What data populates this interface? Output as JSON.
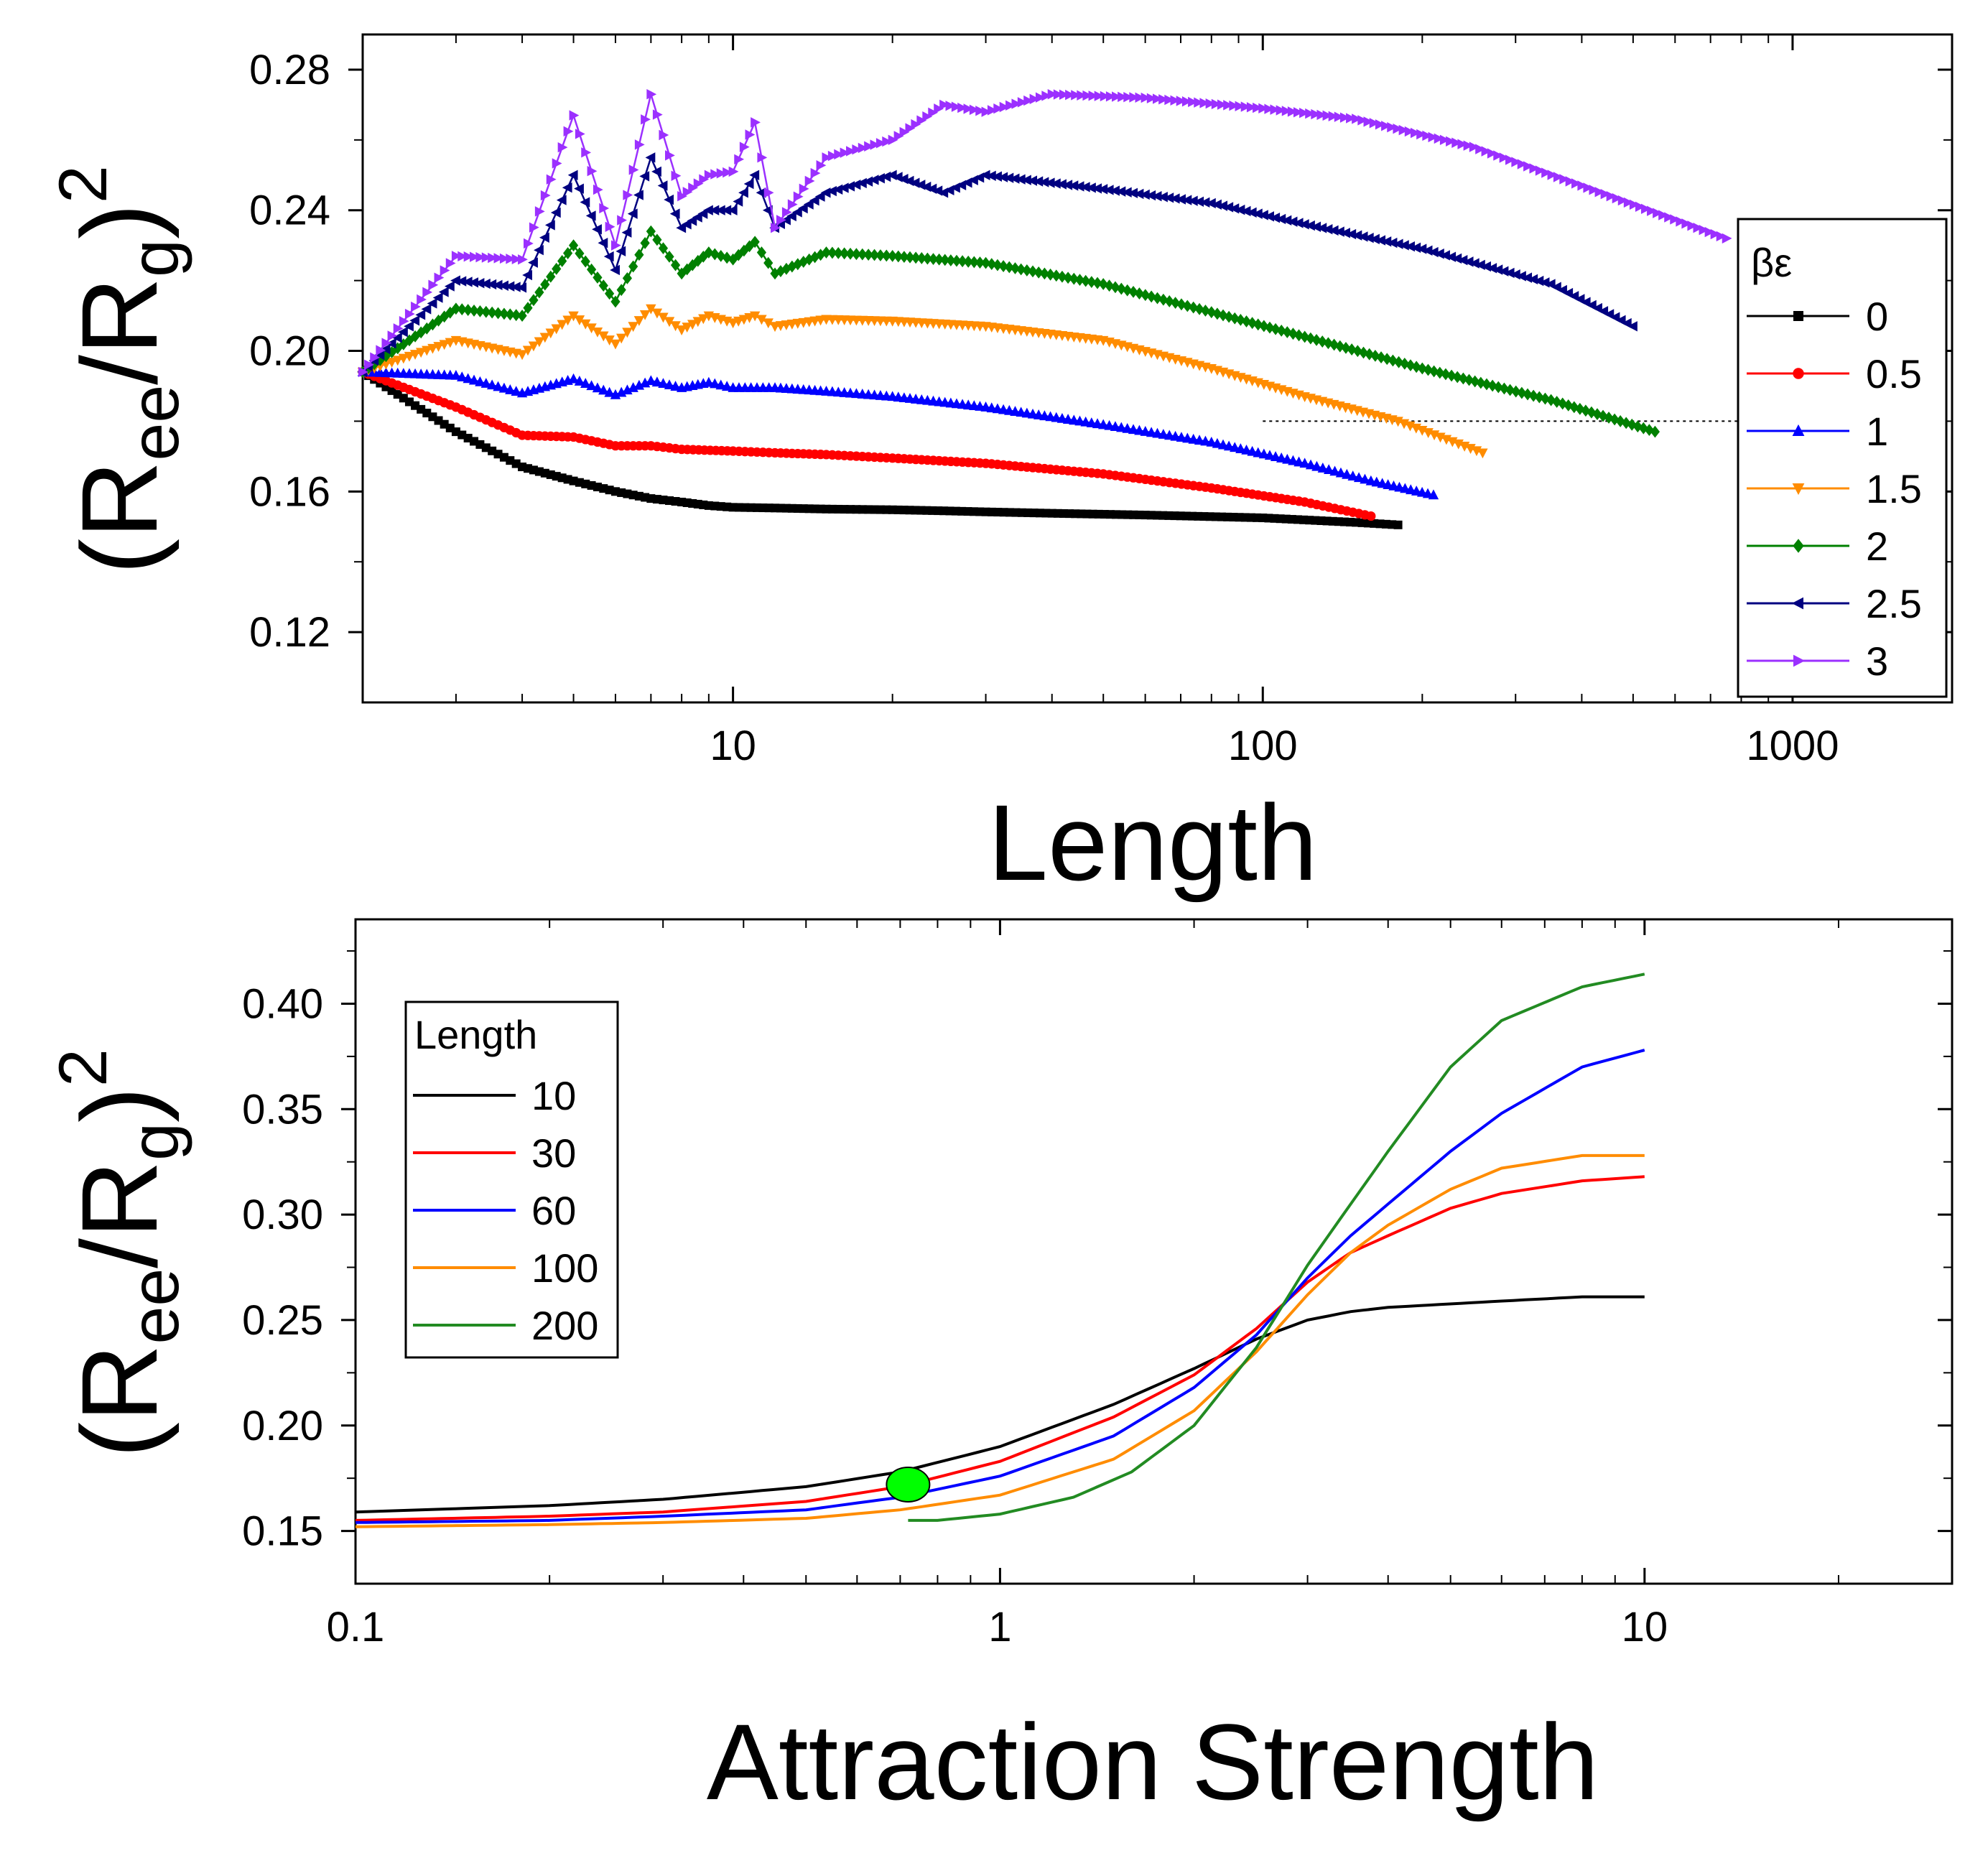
{
  "chart_data": [
    {
      "type": "line",
      "title": "",
      "xlabel": "Length",
      "ylabel": {
        "open": "(R",
        "sub1": "ee",
        "mid": "/R",
        "sub2": "g",
        "close": ")",
        "sup": "2"
      },
      "xscale": "log",
      "xlim": [
        2,
        2000
      ],
      "ylim": [
        0.1,
        0.29
      ],
      "xticks": [
        10,
        100,
        1000
      ],
      "xtick_labels": [
        "10",
        "100",
        "1000"
      ],
      "yticks": [
        0.12,
        0.16,
        0.2,
        0.24,
        0.28
      ],
      "ytick_labels": [
        "0.12",
        "0.16",
        "0.20",
        "0.24",
        "0.28"
      ],
      "reference_line": {
        "y": 0.18,
        "x_from": 100,
        "x_to": 2000,
        "style": "dotted"
      },
      "legend": {
        "title": "βε",
        "placement": "right"
      },
      "series": [
        {
          "name": "0",
          "color": "#000000",
          "marker": "square",
          "x": [
            2,
            3,
            4,
            5,
            6,
            7,
            8,
            9,
            10,
            12,
            15,
            20,
            25,
            30,
            40,
            60,
            100,
            150,
            180
          ],
          "y": [
            0.194,
            0.177,
            0.167,
            0.163,
            0.16,
            0.158,
            0.157,
            0.156,
            0.1555,
            0.1553,
            0.155,
            0.1548,
            0.1545,
            0.1542,
            0.1538,
            0.1533,
            0.1525,
            0.1512,
            0.1505
          ]
        },
        {
          "name": "0.5",
          "color": "#ff0000",
          "marker": "circle",
          "x": [
            2,
            3,
            4,
            5,
            6,
            7,
            8,
            10,
            12,
            15,
            20,
            30,
            50,
            80,
            120,
            160
          ],
          "y": [
            0.194,
            0.184,
            0.176,
            0.1755,
            0.173,
            0.173,
            0.172,
            0.1715,
            0.171,
            0.1705,
            0.1695,
            0.168,
            0.165,
            0.161,
            0.157,
            0.153
          ]
        },
        {
          "name": "1",
          "color": "#0000ff",
          "marker": "triangle-up",
          "x": [
            2,
            3,
            4,
            5,
            6,
            7,
            8,
            9,
            10,
            12,
            15,
            20,
            30,
            50,
            80,
            120,
            160,
            210
          ],
          "y": [
            0.194,
            0.193,
            0.188,
            0.192,
            0.1875,
            0.1915,
            0.1895,
            0.191,
            0.1895,
            0.1895,
            0.1885,
            0.187,
            0.184,
            0.179,
            0.174,
            0.168,
            0.163,
            0.159
          ]
        },
        {
          "name": "1.5",
          "color": "#ff8c00",
          "marker": "triangle-down",
          "x": [
            2,
            3,
            4,
            5,
            6,
            7,
            8,
            9,
            10,
            11,
            12,
            15,
            20,
            30,
            50,
            80,
            120,
            180,
            260
          ],
          "y": [
            0.194,
            0.203,
            0.199,
            0.21,
            0.202,
            0.212,
            0.206,
            0.21,
            0.208,
            0.21,
            0.207,
            0.209,
            0.2085,
            0.207,
            0.203,
            0.195,
            0.187,
            0.18,
            0.171
          ]
        },
        {
          "name": "2",
          "color": "#008000",
          "marker": "diamond",
          "x": [
            2,
            3,
            4,
            5,
            6,
            7,
            8,
            9,
            10,
            11,
            12,
            15,
            20,
            30,
            50,
            80,
            120,
            200,
            350,
            550
          ],
          "y": [
            0.194,
            0.212,
            0.21,
            0.23,
            0.214,
            0.234,
            0.222,
            0.228,
            0.226,
            0.231,
            0.222,
            0.228,
            0.227,
            0.225,
            0.219,
            0.211,
            0.204,
            0.195,
            0.186,
            0.177
          ]
        },
        {
          "name": "2.5",
          "color": "#000080",
          "marker": "triangle-left",
          "x": [
            2,
            3,
            4,
            5,
            6,
            7,
            8,
            9,
            10,
            11,
            12,
            15,
            20,
            25,
            30,
            50,
            80,
            120,
            200,
            350,
            500
          ],
          "y": [
            0.194,
            0.22,
            0.218,
            0.25,
            0.223,
            0.255,
            0.235,
            0.24,
            0.24,
            0.25,
            0.235,
            0.245,
            0.25,
            0.245,
            0.25,
            0.246,
            0.242,
            0.236,
            0.229,
            0.219,
            0.207
          ]
        },
        {
          "name": "3",
          "color": "#9b30ff",
          "marker": "triangle-right",
          "x": [
            2,
            3,
            4,
            5,
            6,
            7,
            8,
            9,
            10,
            11,
            12,
            15,
            20,
            25,
            30,
            40,
            60,
            100,
            150,
            250,
            400,
            750
          ],
          "y": [
            0.194,
            0.227,
            0.226,
            0.267,
            0.23,
            0.273,
            0.244,
            0.25,
            0.251,
            0.265,
            0.235,
            0.255,
            0.26,
            0.27,
            0.268,
            0.273,
            0.272,
            0.269,
            0.266,
            0.258,
            0.247,
            0.232
          ]
        }
      ]
    },
    {
      "type": "line",
      "title": "",
      "xlabel": "Attraction Strength",
      "ylabel": {
        "open": "(R",
        "sub1": "ee",
        "mid": "/R",
        "sub2": "g",
        "close": ")",
        "sup": "2"
      },
      "xscale": "log",
      "xlim": [
        0.1,
        30
      ],
      "ylim": [
        0.125,
        0.44
      ],
      "xticks": [
        0.1,
        1,
        10
      ],
      "xtick_labels": [
        "0.1",
        "1",
        "10"
      ],
      "yticks": [
        0.15,
        0.2,
        0.25,
        0.3,
        0.35,
        0.4
      ],
      "ytick_labels": [
        "0.15",
        "0.20",
        "0.25",
        "0.30",
        "0.35",
        "0.40"
      ],
      "annotation": {
        "type": "ellipse",
        "color": "#00ff00",
        "x": 0.72,
        "y": 0.172
      },
      "legend": {
        "title": "Length",
        "placement": "top-left"
      },
      "series": [
        {
          "name": "10",
          "color": "#000000",
          "x": [
            0.1,
            0.2,
            0.3,
            0.5,
            0.7,
            1,
            1.5,
            2,
            2.5,
            3,
            3.5,
            4,
            6,
            8,
            10
          ],
          "y": [
            0.159,
            0.162,
            0.165,
            0.171,
            0.178,
            0.19,
            0.21,
            0.227,
            0.241,
            0.25,
            0.254,
            0.256,
            0.259,
            0.261,
            0.261
          ]
        },
        {
          "name": "30",
          "color": "#ff0000",
          "x": [
            0.1,
            0.2,
            0.3,
            0.5,
            0.7,
            1,
            1.5,
            2,
            2.5,
            3,
            3.5,
            4,
            5,
            6,
            8,
            10
          ],
          "y": [
            0.155,
            0.157,
            0.159,
            0.164,
            0.171,
            0.183,
            0.204,
            0.224,
            0.246,
            0.268,
            0.282,
            0.29,
            0.303,
            0.31,
            0.316,
            0.318
          ]
        },
        {
          "name": "60",
          "color": "#0000ff",
          "x": [
            0.1,
            0.2,
            0.3,
            0.5,
            0.7,
            1,
            1.5,
            2,
            2.5,
            3,
            3.5,
            4,
            5,
            6,
            8,
            10
          ],
          "y": [
            0.154,
            0.155,
            0.157,
            0.16,
            0.166,
            0.176,
            0.195,
            0.218,
            0.243,
            0.27,
            0.29,
            0.305,
            0.33,
            0.348,
            0.37,
            0.378
          ]
        },
        {
          "name": "100",
          "color": "#ff8c00",
          "x": [
            0.1,
            0.2,
            0.3,
            0.5,
            0.7,
            1,
            1.5,
            2,
            2.5,
            3,
            3.5,
            4,
            5,
            6,
            8,
            10
          ],
          "y": [
            0.152,
            0.153,
            0.154,
            0.156,
            0.16,
            0.167,
            0.184,
            0.207,
            0.235,
            0.262,
            0.282,
            0.295,
            0.312,
            0.322,
            0.328,
            0.328
          ]
        },
        {
          "name": "200",
          "color": "#228b22",
          "x": [
            0.72,
            0.8,
            1,
            1.3,
            1.6,
            2,
            2.5,
            3,
            3.5,
            4,
            5,
            6,
            8,
            10
          ],
          "y": [
            0.155,
            0.155,
            0.158,
            0.166,
            0.178,
            0.2,
            0.237,
            0.276,
            0.305,
            0.33,
            0.37,
            0.392,
            0.408,
            0.414
          ]
        }
      ]
    }
  ]
}
